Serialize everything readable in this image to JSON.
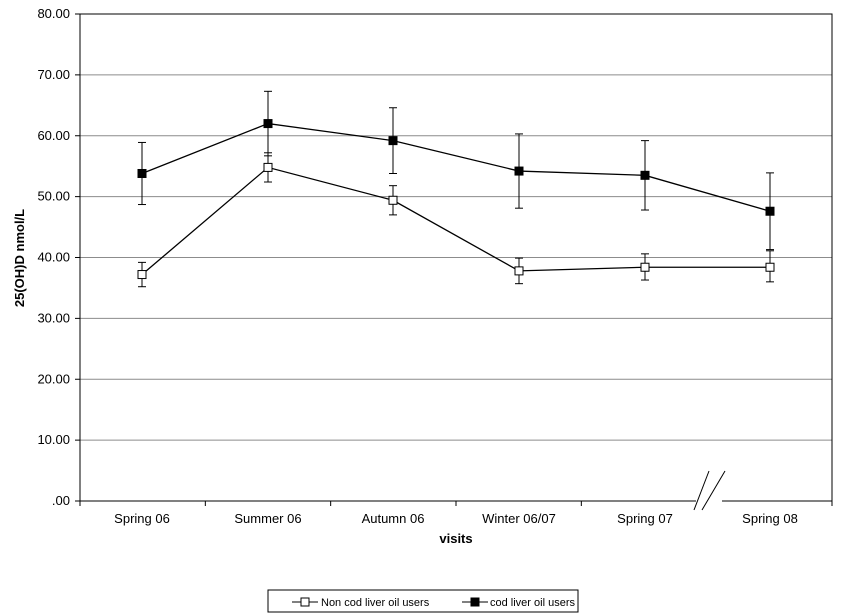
{
  "chart_data": {
    "type": "line",
    "title": "",
    "xlabel": "visits",
    "ylabel": "25(OH)D nmol/L",
    "ylim": [
      0,
      80
    ],
    "yticks": [
      ".00",
      "10.00",
      "20.00",
      "30.00",
      "40.00",
      "50.00",
      "60.00",
      "70.00",
      "80.00"
    ],
    "grid": "horizontal",
    "axis_break": "between Spring 07 and Spring 08",
    "legend_position": "bottom-center",
    "categories": [
      "Spring 06",
      "Summer 06",
      "Autumn 06",
      "Winter 06/07",
      "Spring 07",
      "Spring 08"
    ],
    "series": [
      {
        "name": "Non cod liver oil users",
        "marker": "open-square",
        "values": [
          37.2,
          54.8,
          49.4,
          37.8,
          38.4,
          38.4
        ],
        "error_low": [
          35.2,
          52.4,
          47.0,
          35.7,
          36.3,
          36.0
        ],
        "error_high": [
          39.2,
          57.2,
          51.8,
          39.9,
          40.6,
          41.1
        ]
      },
      {
        "name": "cod liver oil users",
        "marker": "filled-square",
        "values": [
          53.8,
          62.0,
          59.2,
          54.2,
          53.5,
          47.6
        ],
        "error_low": [
          48.7,
          56.7,
          53.8,
          48.1,
          47.8,
          41.3
        ],
        "error_high": [
          58.9,
          67.3,
          64.6,
          60.3,
          59.2,
          53.9
        ]
      }
    ]
  }
}
